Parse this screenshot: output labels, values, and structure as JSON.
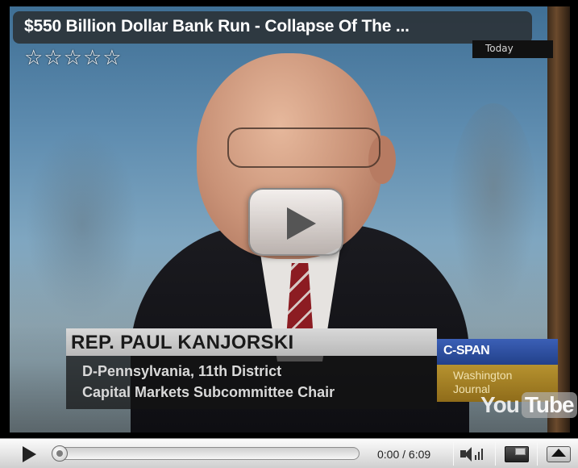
{
  "video": {
    "title": "$550 Billion Dollar Bank Run - Collapse Of The ...",
    "rating": {
      "value": 5,
      "max": 5,
      "star_glyph": "☆"
    },
    "network_tag": "Today",
    "chyron": {
      "name": "REP. PAUL KANJORSKI",
      "line1": "D-Pennsylvania, 11th District",
      "line2": "Capital Markets Subcommittee Chair"
    },
    "network_logo": "C-SPAN",
    "show_name": {
      "line1": "Washington",
      "line2": "Journal"
    },
    "watermark": {
      "you": "You",
      "tube": "Tube"
    },
    "center_play_icon": "play-icon"
  },
  "controls": {
    "play_icon": "play-icon",
    "current_time": "0:00",
    "duration": "6:09",
    "time_text": "0:00 / 6:09",
    "progress_fraction": 0,
    "volume_icon": "volume-icon",
    "size_toggle_icon": "normal-size-icon",
    "fullscreen_icon": "fullscreen-icon"
  },
  "colors": {
    "title_bar_bg": "#2a2a2a",
    "chyron_name_bg": "#c8c8c8",
    "network_logo_bg": "#2d4c9e",
    "show_box_bg": "#a5811f",
    "controls_bg": "#e4e4e4"
  }
}
